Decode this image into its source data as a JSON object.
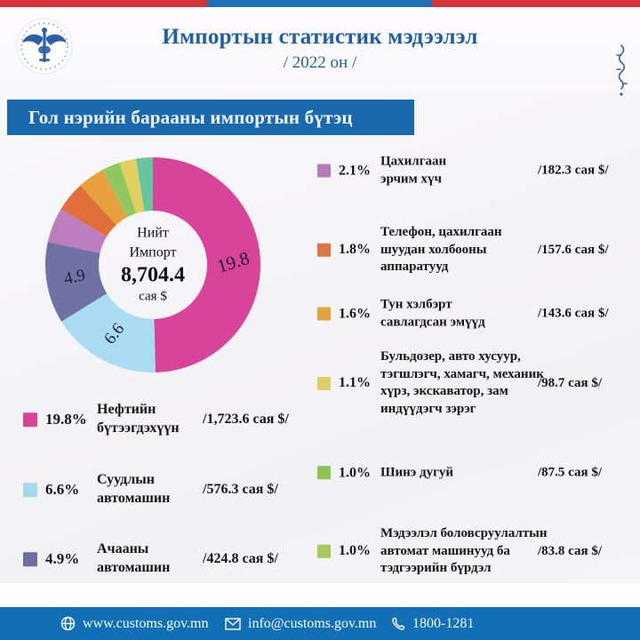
{
  "header": {
    "title": "Импортын статистик мэдээлэл",
    "subtitle": "/ 2022 он /",
    "logo_alt": "Монголын гааль — Mongolian Customs"
  },
  "banner": {
    "label": "Гол нэрийн барааны импортын бүтэц"
  },
  "chart_data": {
    "type": "pie",
    "variant": "donut",
    "title": "Гол нэрийн барааны импортын бүтэц",
    "center": {
      "line1": "Нийт",
      "line2": "Импорт",
      "total": "8,704.4",
      "unit": "сая $"
    },
    "total_import_musd": 8704.4,
    "legend_position": "left-bottom and right column",
    "slices": [
      {
        "name": "Нефтийн бүтээгдэхүүн",
        "pct": 19.8,
        "value_musd": 1723.6,
        "value_text": "/1,723.6 сая $/",
        "color": "#d9449b",
        "swatch_color": "#d84493"
      },
      {
        "name": "Суудлын автомашин",
        "pct": 6.6,
        "value_musd": 576.3,
        "value_text": "/576.3 сая $/",
        "color": "#a9dbf2",
        "swatch_color": "#a6d9ef"
      },
      {
        "name": "Ачааны автомашин",
        "pct": 4.9,
        "value_musd": 424.8,
        "value_text": "/424.8 сая $/",
        "color": "#6e72a5",
        "swatch_color": "#6f6f9e"
      },
      {
        "name": "Цахилгаан эрчим хүч",
        "pct": 2.1,
        "value_musd": 182.3,
        "value_text": "/182.3 сая $/",
        "color": "#bd7dbe",
        "swatch_color": "#b77bb9"
      },
      {
        "name": "Телефон, цахилгаан шуудан холбооны аппаратууд",
        "pct": 1.8,
        "value_musd": 157.6,
        "value_text": "/157.6 сая $/",
        "color": "#e06f3a",
        "swatch_color": "#dd7446"
      },
      {
        "name": "Тун хэлбэрт савлагдсан эмүүд",
        "pct": 1.6,
        "value_musd": 143.6,
        "value_text": "/143.6 сая $/",
        "color": "#e9a13f",
        "swatch_color": "#e5a33f"
      },
      {
        "name": "Бульдозер, авто хусуур, тэгшлэгч, хамагч, механик хүрз, экскаватор, зам индүүдэгч зэрэг",
        "pct": 1.1,
        "value_musd": 98.7,
        "value_text": "/98.7 сая $/",
        "color": "#8fc85e",
        "swatch_color": "#dbcf66"
      },
      {
        "name": "Шинэ дугуй",
        "pct": 1.0,
        "value_musd": 87.5,
        "value_text": "/87.5 сая $/",
        "color": "#e0d05f",
        "swatch_color": "#8cc455"
      },
      {
        "name": "Мэдээлэл боловсруулалтын автомат машинууд ба тэдгээрийн бүрдэл",
        "pct": 1.0,
        "value_musd": 83.8,
        "value_text": "/83.8 сая $/",
        "color": "#68c49e",
        "swatch_color": "#a5c95c"
      }
    ]
  },
  "footer": {
    "website": "www.customs.gov.mn",
    "email": "info@customs.gov.mn",
    "phone": "1800-1281"
  },
  "colors": {
    "topbar_red": "#d3333b",
    "topbar_blue": "#1e6fb5",
    "banner_blue": "#1a69ae",
    "footer_blue": "#1170b5",
    "title_blue": "#1e5fa6"
  }
}
